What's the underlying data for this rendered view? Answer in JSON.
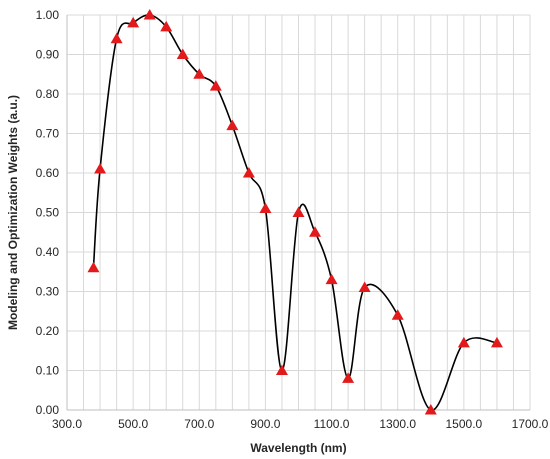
{
  "chart_data": {
    "type": "scatter",
    "title": "",
    "xlabel": "Wavelength (nm)",
    "ylabel": "Modeling and Optimization Weights (a.u.)",
    "xlim": [
      300,
      1700
    ],
    "ylim": [
      0,
      1
    ],
    "grid": true,
    "legend": "none",
    "x_ticks": [
      "300.0",
      "500.0",
      "700.0",
      "900.0",
      "1100.0",
      "1300.0",
      "1500.0",
      "1700.0"
    ],
    "y_ticks": [
      "0.00",
      "0.10",
      "0.20",
      "0.30",
      "0.40",
      "0.50",
      "0.60",
      "0.70",
      "0.80",
      "0.90",
      "1.00"
    ],
    "series": [
      {
        "marker": "triangle",
        "line": "smooth",
        "marker_color": "#e31a1c",
        "line_color": "#000000",
        "x": [
          380,
          400,
          450,
          500,
          550,
          600,
          650,
          700,
          750,
          800,
          850,
          900,
          950,
          1000,
          1050,
          1100,
          1150,
          1200,
          1300,
          1400,
          1500,
          1600
        ],
        "y": [
          0.36,
          0.61,
          0.94,
          0.98,
          1.0,
          0.97,
          0.9,
          0.85,
          0.82,
          0.72,
          0.6,
          0.51,
          0.1,
          0.5,
          0.45,
          0.33,
          0.08,
          0.31,
          0.24,
          0.0,
          0.17,
          0.17
        ]
      }
    ]
  }
}
